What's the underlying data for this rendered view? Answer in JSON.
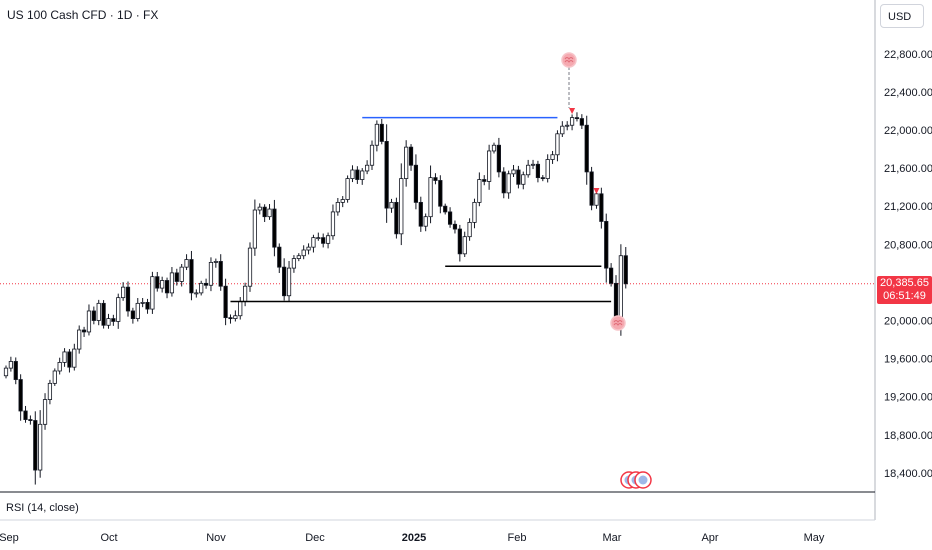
{
  "header": {
    "title": "US 100 Cash CFD · 1D · FX",
    "currency": "USD"
  },
  "indicator": {
    "label": "RSI (14, close)"
  },
  "last_price": {
    "value": "20,385.65",
    "countdown": "06:51:49"
  },
  "colors": {
    "up": "#ffffff",
    "down": "#000000",
    "wick": "#131722",
    "accent": "#f23645",
    "resistance": "#2962ff",
    "support": "#000000"
  },
  "chart_data": {
    "type": "candlestick",
    "y_ticks": [
      "22,800.00",
      "22,400.00",
      "22,000.00",
      "21,600.00",
      "21,200.00",
      "20,800.00",
      "20,000.00",
      "19,600.00",
      "19,200.00",
      "18,800.00",
      "18,400.00"
    ],
    "y_tick_values": [
      22800,
      22400,
      22000,
      21600,
      21200,
      20800,
      20000,
      19600,
      19200,
      18800,
      18400
    ],
    "x_ticks": [
      "Sep",
      "Oct",
      "Nov",
      "Dec",
      "2025",
      "Feb",
      "Mar",
      "Apr",
      "May"
    ],
    "ylim": [
      18250,
      23150
    ],
    "closes": [
      19500,
      19570,
      19380,
      19050,
      18960,
      18950,
      18430,
      18910,
      19170,
      19340,
      19470,
      19560,
      19670,
      19510,
      19700,
      19900,
      19880,
      20100,
      20000,
      20180,
      19950,
      20020,
      19990,
      20240,
      20350,
      20100,
      20020,
      20180,
      20190,
      20120,
      20460,
      20340,
      20420,
      20290,
      20500,
      20410,
      20560,
      20640,
      20290,
      20290,
      20390,
      20370,
      20610,
      20620,
      20360,
      20030,
      20020,
      20050,
      20200,
      20360,
      20760,
      21160,
      21190,
      21090,
      21170,
      20770,
      20560,
      20260,
      20550,
      20650,
      20680,
      20740,
      20770,
      20870,
      20870,
      20810,
      20890,
      21140,
      21240,
      21270,
      21490,
      21580,
      21480,
      21570,
      21630,
      21840,
      22060,
      21880,
      21180,
      21240,
      20910,
      21490,
      21820,
      21630,
      21240,
      20990,
      21090,
      21500,
      21470,
      21200,
      21140,
      21010,
      20960,
      20700,
      20880,
      21030,
      21240,
      21480,
      21460,
      21780,
      21840,
      21560,
      21340,
      21540,
      21580,
      21430,
      21530,
      21630,
      21640,
      21500,
      21490,
      21690,
      21740,
      21960,
      22040,
      22050,
      22130,
      22120,
      22050,
      21560,
      21210,
      21330,
      21040,
      20550,
      20390,
      20030,
      20680,
      20385.65
    ],
    "resistance_level": 22130,
    "support_levels": [
      20570,
      20200
    ],
    "annotations": [
      {
        "type": "sell-signal",
        "value": 22200
      },
      {
        "type": "sell-signal",
        "value": 21360
      }
    ]
  }
}
